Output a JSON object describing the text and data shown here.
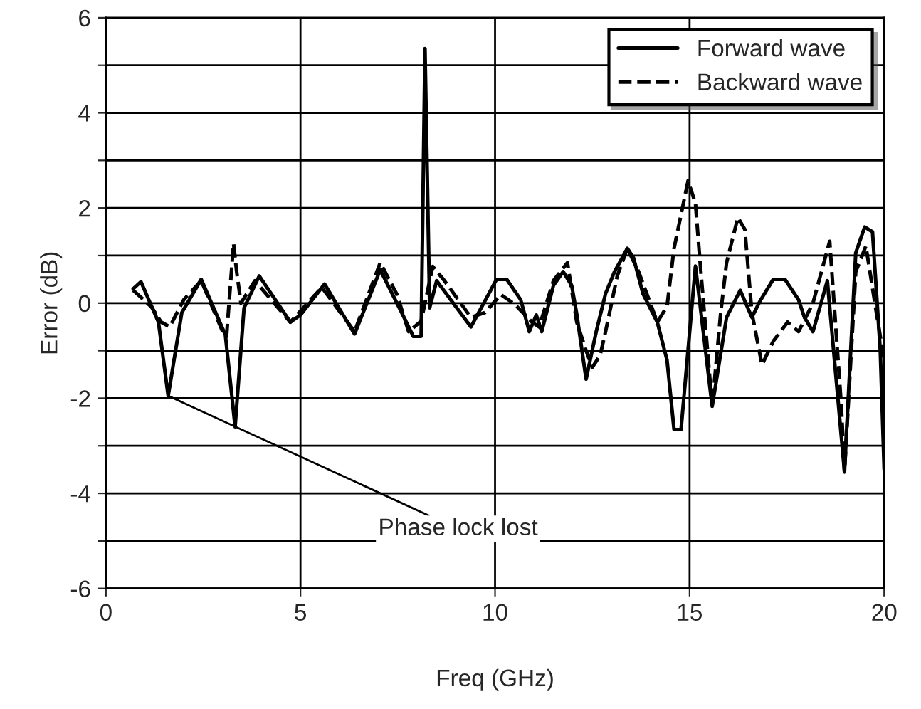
{
  "chart_data": {
    "type": "line",
    "xlabel": "Freq (GHz)",
    "ylabel": "Error (dB)",
    "xlim": [
      0,
      20
    ],
    "xticks": [
      0,
      5,
      10,
      15,
      20
    ],
    "ylim": [
      -6,
      6
    ],
    "yticks": [
      -6,
      {
        "value": -5,
        "label": null
      },
      -4,
      {
        "value": -3,
        "label": null
      },
      -2,
      {
        "value": -1,
        "label": null
      },
      0,
      {
        "value": 1,
        "label": null
      },
      2,
      {
        "value": 3,
        "label": null
      },
      4,
      {
        "value": 5,
        "label": null
      },
      6
    ],
    "grid": true,
    "legend": "top right",
    "marker": "none",
    "series": [
      {
        "name": "Forward wave",
        "color": "#000000",
        "line_style": "solid",
        "x": [
          0.7,
          0.9,
          1.35,
          1.6,
          1.95,
          2.45,
          3.07,
          3.32,
          3.55,
          3.94,
          4.74,
          5.0,
          5.62,
          6.39,
          7.05,
          7.6,
          7.9,
          8.1,
          8.2,
          8.32,
          8.5,
          9.38,
          10.04,
          10.3,
          10.66,
          10.88,
          11.06,
          11.2,
          11.5,
          11.75,
          11.97,
          12.1,
          12.34,
          12.6,
          12.84,
          13.07,
          13.4,
          13.56,
          13.8,
          14.17,
          14.42,
          14.6,
          14.78,
          15.15,
          15.58,
          15.95,
          16.3,
          16.6,
          16.8,
          17.15,
          17.45,
          17.8,
          17.95,
          18.17,
          18.54,
          18.98,
          19.27,
          19.5,
          19.7,
          19.9,
          20.0
        ],
        "values": [
          0.3,
          0.45,
          -0.4,
          -1.95,
          -0.2,
          0.5,
          -0.67,
          -2.6,
          -0.1,
          0.57,
          -0.4,
          -0.25,
          0.4,
          -0.65,
          0.7,
          -0.2,
          -0.7,
          -0.7,
          5.35,
          -0.1,
          0.47,
          -0.5,
          0.5,
          0.5,
          0.07,
          -0.6,
          -0.25,
          -0.6,
          0.37,
          0.66,
          0.37,
          -0.23,
          -1.6,
          -0.6,
          0.2,
          0.66,
          1.15,
          0.95,
          0.2,
          -0.4,
          -1.2,
          -2.66,
          -2.66,
          0.78,
          -2.17,
          -0.3,
          0.27,
          -0.3,
          0.03,
          0.5,
          0.5,
          0.07,
          -0.3,
          -0.6,
          0.47,
          -3.55,
          1.06,
          1.6,
          1.5,
          -1.0,
          -3.5
        ]
      },
      {
        "name": "Backward wave",
        "color": "#000000",
        "line_style": "dashed",
        "x": [
          0.7,
          1.17,
          1.42,
          1.64,
          2.0,
          2.45,
          3.0,
          3.1,
          3.28,
          3.36,
          3.47,
          3.83,
          4.74,
          5.55,
          6.39,
          7.05,
          7.48,
          7.78,
          8.1,
          8.4,
          8.7,
          9.38,
          9.74,
          10.15,
          10.5,
          10.95,
          11.13,
          11.24,
          11.5,
          11.86,
          12.1,
          12.34,
          12.5,
          12.7,
          12.84,
          13.14,
          13.4,
          13.69,
          14.17,
          14.42,
          14.6,
          14.96,
          15.15,
          15.26,
          15.58,
          15.8,
          15.95,
          16.24,
          16.42,
          16.6,
          16.86,
          17.15,
          17.52,
          17.8,
          18.17,
          18.6,
          18.9,
          18.98,
          19.27,
          19.53,
          19.8,
          20.0
        ],
        "values": [
          0.27,
          -0.08,
          -0.4,
          -0.5,
          0.07,
          0.47,
          -0.6,
          -0.7,
          1.25,
          0.66,
          0.0,
          0.47,
          -0.4,
          0.33,
          -0.6,
          0.85,
          0.18,
          -0.6,
          -0.38,
          0.77,
          0.47,
          -0.3,
          -0.2,
          0.18,
          -0.02,
          -0.4,
          -0.5,
          -0.22,
          0.47,
          0.85,
          -0.4,
          -1.0,
          -1.35,
          -1.1,
          -0.6,
          0.57,
          1.15,
          0.66,
          -0.4,
          -0.07,
          1.15,
          2.57,
          2.1,
          0.95,
          -2.17,
          -0.2,
          0.85,
          1.8,
          1.55,
          -0.2,
          -1.3,
          -0.8,
          -0.4,
          -0.6,
          0.0,
          1.3,
          -2.17,
          -3.55,
          0.66,
          1.2,
          -0.2,
          -1.2
        ]
      }
    ],
    "annotations": [
      {
        "text": "Phase lock lost",
        "x": 1.6,
        "y": -1.95
      }
    ]
  }
}
